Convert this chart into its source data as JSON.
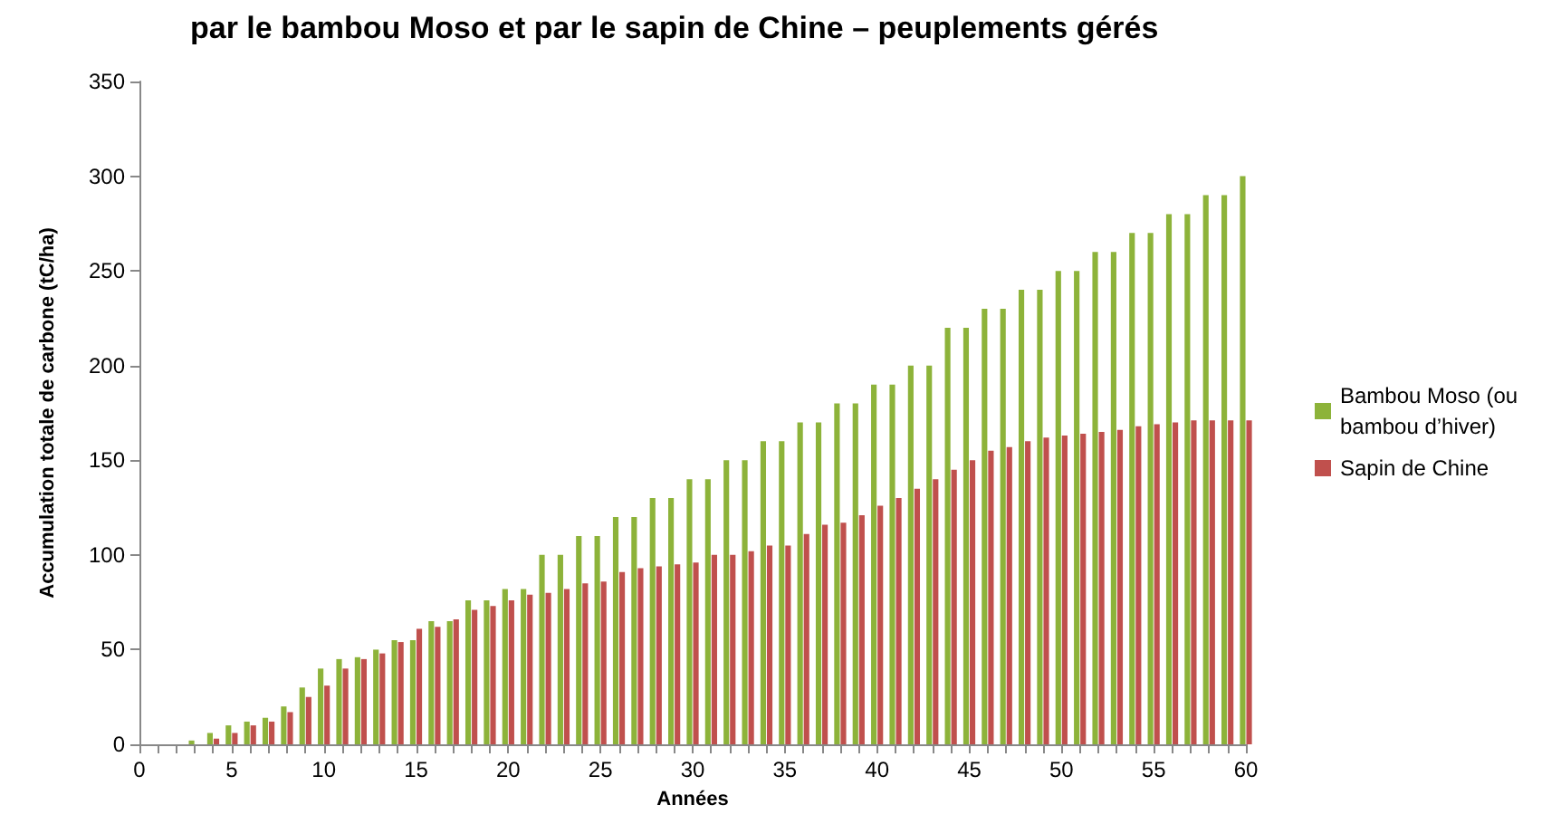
{
  "chart_data": {
    "type": "bar",
    "title": "par le bambou Moso et par le sapin de Chine – peuplements gérés",
    "xlabel": "Années",
    "ylabel": "Accumulation totale de carbone (tC/ha)",
    "categories": [
      "0",
      null,
      null,
      null,
      null,
      "5",
      null,
      null,
      null,
      null,
      "10",
      null,
      null,
      null,
      null,
      "15",
      null,
      null,
      null,
      null,
      "20",
      null,
      null,
      null,
      null,
      "25",
      null,
      null,
      null,
      null,
      "30",
      null,
      null,
      null,
      null,
      "35",
      null,
      null,
      null,
      null,
      "40",
      null,
      null,
      null,
      null,
      "45",
      null,
      null,
      null,
      null,
      "50",
      null,
      null,
      null,
      null,
      "55",
      null,
      null,
      null,
      null,
      "60"
    ],
    "series": [
      {
        "name": "Bambou Moso (ou bambou d’hiver)",
        "color": "#8db33a",
        "values": [
          0,
          0,
          0,
          2,
          6,
          10,
          12,
          14,
          20,
          30,
          40,
          45,
          46,
          50,
          55,
          55,
          65,
          65,
          76,
          76,
          82,
          82,
          100,
          100,
          110,
          110,
          120,
          120,
          130,
          130,
          140,
          140,
          150,
          150,
          160,
          160,
          170,
          170,
          180,
          180,
          190,
          190,
          200,
          200,
          220,
          220,
          230,
          230,
          240,
          240,
          250,
          250,
          260,
          260,
          270,
          270,
          280,
          280,
          290,
          290,
          300
        ]
      },
      {
        "name": "Sapin de Chine",
        "color": "#c0504d",
        "values": [
          0,
          0,
          0,
          0,
          3,
          6,
          10,
          12,
          17,
          25,
          31,
          40,
          45,
          48,
          54,
          61,
          62,
          66,
          71,
          73,
          76,
          79,
          80,
          82,
          85,
          86,
          91,
          93,
          94,
          95,
          96,
          100,
          100,
          102,
          105,
          105,
          111,
          116,
          117,
          121,
          126,
          130,
          135,
          140,
          145,
          150,
          155,
          157,
          160,
          162,
          163,
          164,
          165,
          166,
          168,
          169,
          170,
          171,
          171,
          171,
          171
        ]
      }
    ],
    "ylim": [
      0,
      350
    ],
    "yticks": [
      0,
      50,
      100,
      150,
      200,
      250,
      300,
      350
    ],
    "grid": false,
    "legend": "right"
  }
}
